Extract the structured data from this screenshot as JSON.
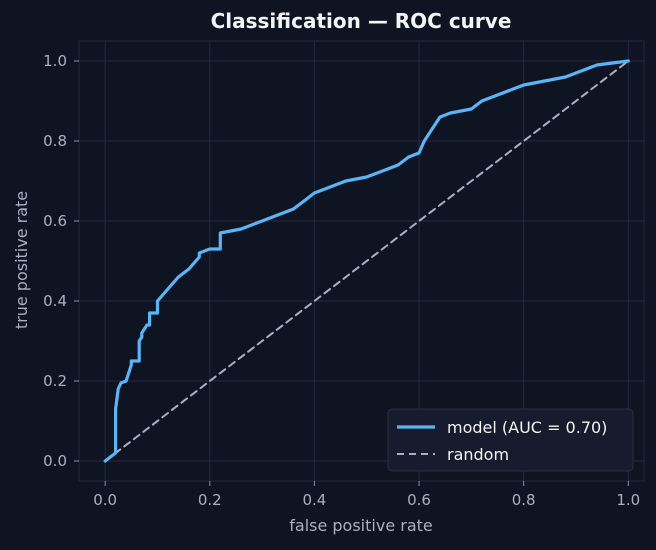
{
  "chart_data": {
    "type": "line",
    "title": "Classification — ROC curve",
    "xlabel": "false positive rate",
    "ylabel": "true positive rate",
    "xlim": [
      -0.05,
      1.03
    ],
    "ylim": [
      -0.05,
      1.05
    ],
    "xticks": [
      "0.0",
      "0.2",
      "0.4",
      "0.6",
      "0.8",
      "1.0"
    ],
    "yticks": [
      "0.0",
      "0.2",
      "0.4",
      "0.6",
      "0.8",
      "1.0"
    ],
    "grid": true,
    "legend_position": "bottom-right",
    "series": [
      {
        "name": "model (AUC = 0.70)",
        "color": "#5ab4f5",
        "style": "solid",
        "x": [
          0.0,
          0.02,
          0.02,
          0.025,
          0.03,
          0.04,
          0.05,
          0.05,
          0.065,
          0.065,
          0.07,
          0.07,
          0.08,
          0.085,
          0.085,
          0.1,
          0.1,
          0.12,
          0.14,
          0.16,
          0.18,
          0.18,
          0.2,
          0.22,
          0.22,
          0.26,
          0.28,
          0.3,
          0.34,
          0.36,
          0.38,
          0.4,
          0.42,
          0.46,
          0.5,
          0.54,
          0.56,
          0.58,
          0.6,
          0.61,
          0.62,
          0.64,
          0.66,
          0.7,
          0.72,
          0.74,
          0.78,
          0.8,
          0.84,
          0.88,
          0.9,
          0.92,
          0.94,
          1.0
        ],
        "y": [
          0.0,
          0.02,
          0.13,
          0.18,
          0.195,
          0.2,
          0.24,
          0.25,
          0.25,
          0.3,
          0.31,
          0.32,
          0.34,
          0.34,
          0.37,
          0.37,
          0.4,
          0.43,
          0.46,
          0.48,
          0.51,
          0.52,
          0.53,
          0.53,
          0.57,
          0.58,
          0.59,
          0.6,
          0.62,
          0.63,
          0.65,
          0.67,
          0.68,
          0.7,
          0.71,
          0.73,
          0.74,
          0.76,
          0.77,
          0.8,
          0.82,
          0.86,
          0.87,
          0.88,
          0.9,
          0.91,
          0.93,
          0.94,
          0.95,
          0.96,
          0.97,
          0.98,
          0.99,
          1.0
        ]
      },
      {
        "name": "random",
        "color": "#a9b0c4",
        "style": "dashed",
        "x": [
          0.0,
          1.0
        ],
        "y": [
          0.0,
          1.0
        ]
      }
    ]
  }
}
